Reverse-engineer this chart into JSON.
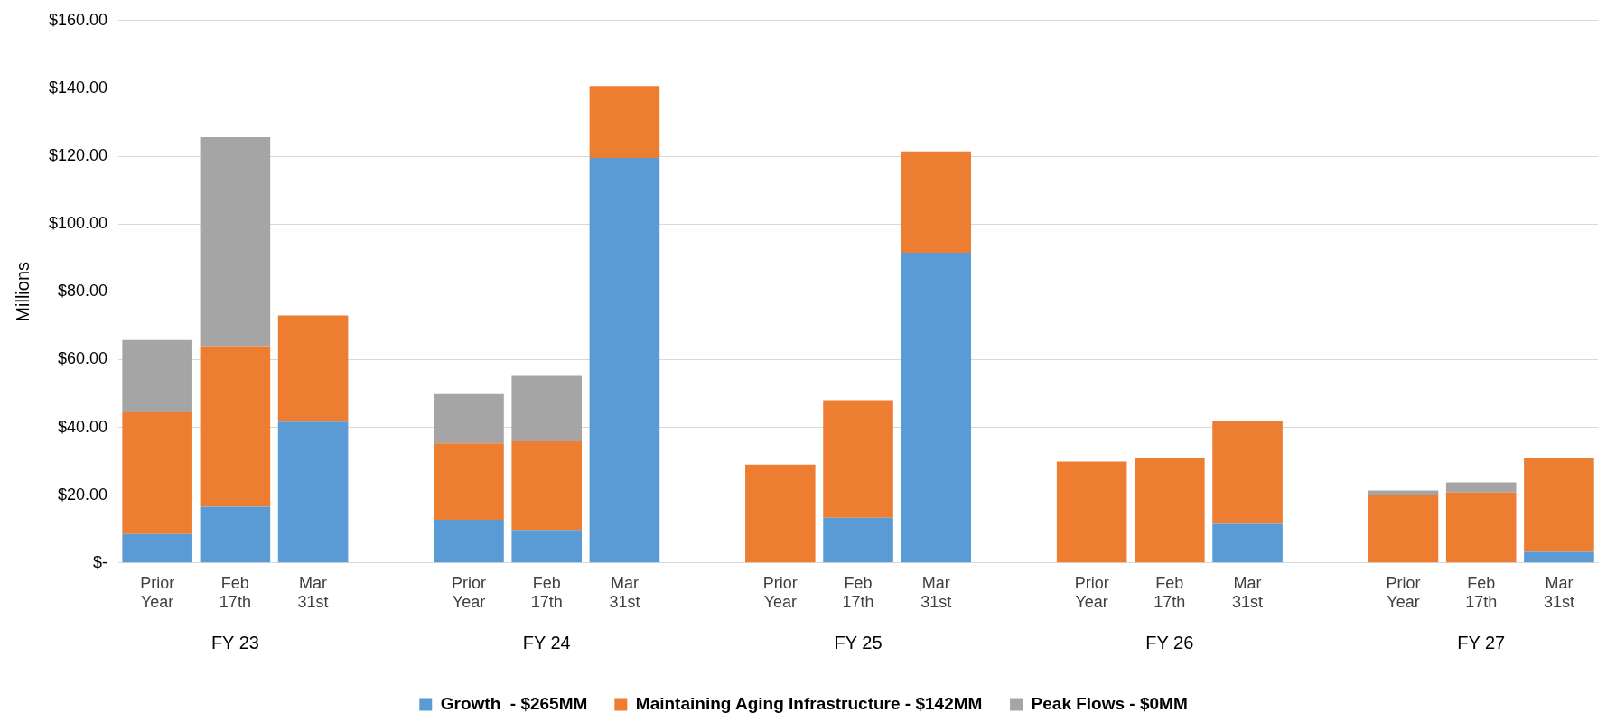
{
  "chart_data": {
    "type": "bar",
    "stacked": true,
    "ylabel": "Millions",
    "categories": [
      "Prior Year",
      "Feb 17th",
      "Mar 31st",
      null,
      "Prior Year",
      "Feb 17th",
      "Mar 31st",
      null,
      "Prior Year",
      "Feb 17th",
      "Mar 31st",
      null,
      "Prior Year",
      "Feb 17th",
      "Mar 31st",
      null,
      "Prior Year",
      "Feb 17th",
      "Mar 31st"
    ],
    "series": [
      {
        "name": "Growth  - $265MM",
        "color": "#5b9bd5",
        "values": [
          8.5,
          16.6,
          41.7,
          null,
          12.7,
          9.7,
          119.5,
          null,
          0,
          13.3,
          91.5,
          null,
          0,
          0,
          11.5,
          null,
          0,
          0,
          3.3
        ]
      },
      {
        "name": "Maintaining Aging Infrastructure - $142MM",
        "color": "#ed7d31",
        "values": [
          36.2,
          47.4,
          31.3,
          null,
          22.6,
          26.2,
          21.2,
          null,
          29.0,
          34.7,
          29.9,
          null,
          29.9,
          30.8,
          30.5,
          null,
          20.2,
          20.8,
          27.5
        ]
      },
      {
        "name": "Peak Flows - $0MM",
        "color": "#a5a5a5",
        "values": [
          21.1,
          61.6,
          0,
          null,
          14.5,
          19.3,
          0,
          null,
          0,
          0,
          0,
          null,
          0,
          0,
          0,
          null,
          1.2,
          3.0,
          0
        ]
      }
    ],
    "annotations": [
      "FY 23",
      "FY 24",
      "FY 25",
      "FY 26",
      "FY 27"
    ],
    "ylim": [
      0,
      160
    ],
    "yticks": [
      {
        "value": 0,
        "label": "$-"
      },
      {
        "value": 20,
        "label": "$20.00"
      },
      {
        "value": 40,
        "label": "$40.00"
      },
      {
        "value": 60,
        "label": "$60.00"
      },
      {
        "value": 80,
        "label": "$80.00"
      },
      {
        "value": 100,
        "label": "$100.00"
      },
      {
        "value": 120,
        "label": "$120.00"
      },
      {
        "value": 140,
        "label": "$140.00"
      },
      {
        "value": 160,
        "label": "$160.00"
      }
    ],
    "grid": "y",
    "legend": "bottom"
  }
}
